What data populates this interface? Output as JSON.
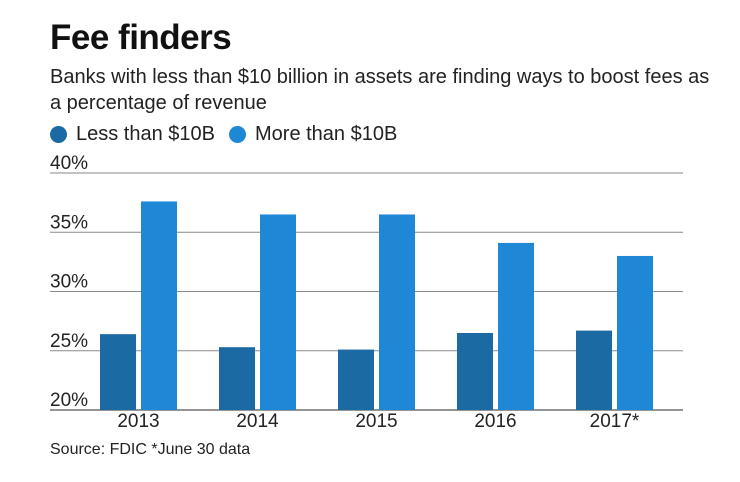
{
  "header": {
    "title": "Fee finders",
    "subtitle": "Banks with less than $10 billion in assets are finding ways to boost fees as a percentage of revenue"
  },
  "legend": {
    "items": [
      {
        "label": "Less than $10B",
        "color": "#1c6aa3"
      },
      {
        "label": "More than $10B",
        "color": "#1e88d6"
      }
    ]
  },
  "source": "Source: FDIC *June 30 data",
  "chart_data": {
    "type": "bar",
    "categories": [
      "2013",
      "2014",
      "2015",
      "2016",
      "2017*"
    ],
    "series": [
      {
        "name": "Less than $10B",
        "color": "#1c6aa3",
        "values": [
          26.4,
          25.3,
          25.1,
          26.5,
          26.7
        ]
      },
      {
        "name": "More than $10B",
        "color": "#1e88d6",
        "values": [
          37.6,
          36.5,
          36.5,
          34.1,
          33.0
        ]
      }
    ],
    "ylim": [
      20,
      40
    ],
    "yticks": [
      40,
      35,
      30,
      25,
      20
    ],
    "ytick_labels": [
      "40%",
      "35%",
      "30%",
      "25%",
      "20%"
    ],
    "grid": true,
    "legend_position": "top-left"
  }
}
